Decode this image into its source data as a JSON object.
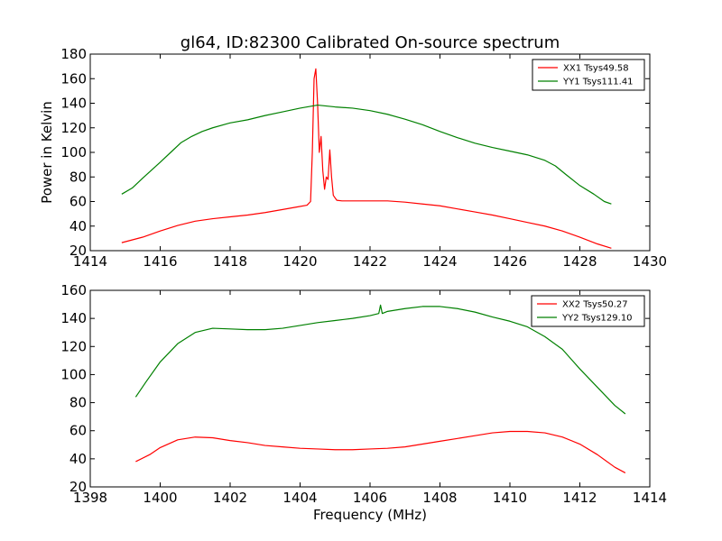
{
  "figure": {
    "title": "gl64, ID:82300 Calibrated On-source spectrum",
    "colors": {
      "xx": "#ff0000",
      "yy": "#008000"
    }
  },
  "chart_data": [
    {
      "type": "line",
      "ylabel": "Power in Kelvin",
      "xlabel": "",
      "xlim": [
        1414,
        1430
      ],
      "ylim": [
        20,
        180
      ],
      "xticks": [
        1414,
        1416,
        1418,
        1420,
        1422,
        1424,
        1426,
        1428,
        1430
      ],
      "yticks": [
        20,
        40,
        60,
        80,
        100,
        120,
        140,
        160,
        180
      ],
      "legend_position": "top-right",
      "series": [
        {
          "name": "XX1 Tsys49.58",
          "color": "#ff0000",
          "points": [
            [
              1414.9,
              26.5
            ],
            [
              1415.5,
              31
            ],
            [
              1416,
              36
            ],
            [
              1416.5,
              40.5
            ],
            [
              1417,
              44
            ],
            [
              1417.5,
              46
            ],
            [
              1418,
              47.5
            ],
            [
              1418.5,
              49
            ],
            [
              1419,
              51
            ],
            [
              1419.5,
              53.5
            ],
            [
              1419.9,
              55.5
            ],
            [
              1420.2,
              57
            ],
            [
              1420.3,
              60
            ],
            [
              1420.35,
              100
            ],
            [
              1420.4,
              160
            ],
            [
              1420.45,
              168
            ],
            [
              1420.5,
              140
            ],
            [
              1420.55,
              100
            ],
            [
              1420.6,
              113
            ],
            [
              1420.65,
              85
            ],
            [
              1420.7,
              70
            ],
            [
              1420.75,
              80
            ],
            [
              1420.8,
              78
            ],
            [
              1420.85,
              102
            ],
            [
              1420.9,
              80
            ],
            [
              1420.95,
              65
            ],
            [
              1421.05,
              61
            ],
            [
              1421.2,
              60.5
            ],
            [
              1421.5,
              60.5
            ],
            [
              1422,
              60.5
            ],
            [
              1422.5,
              60.5
            ],
            [
              1423,
              59.5
            ],
            [
              1423.5,
              58
            ],
            [
              1424,
              56.5
            ],
            [
              1424.5,
              54
            ],
            [
              1425,
              51.5
            ],
            [
              1425.5,
              49
            ],
            [
              1426,
              46
            ],
            [
              1426.5,
              43
            ],
            [
              1427,
              40
            ],
            [
              1427.5,
              36
            ],
            [
              1428,
              31
            ],
            [
              1428.5,
              25.5
            ],
            [
              1428.9,
              22
            ]
          ]
        },
        {
          "name": "YY1 Tsys111.41",
          "color": "#008000",
          "points": [
            [
              1414.9,
              66
            ],
            [
              1415.2,
              71
            ],
            [
              1415.5,
              79
            ],
            [
              1416,
              92
            ],
            [
              1416.3,
              100
            ],
            [
              1416.6,
              108
            ],
            [
              1416.9,
              113
            ],
            [
              1417.2,
              117
            ],
            [
              1417.5,
              120
            ],
            [
              1418,
              124
            ],
            [
              1418.5,
              126.5
            ],
            [
              1419,
              130
            ],
            [
              1419.5,
              133
            ],
            [
              1420,
              136
            ],
            [
              1420.5,
              138.5
            ],
            [
              1421,
              137
            ],
            [
              1421.5,
              136
            ],
            [
              1422,
              134
            ],
            [
              1422.5,
              131
            ],
            [
              1423,
              127
            ],
            [
              1423.5,
              122.5
            ],
            [
              1424,
              117
            ],
            [
              1424.5,
              112
            ],
            [
              1425,
              107.5
            ],
            [
              1425.5,
              104
            ],
            [
              1426,
              101
            ],
            [
              1426.5,
              98
            ],
            [
              1427,
              93.5
            ],
            [
              1427.3,
              89
            ],
            [
              1427.6,
              82
            ],
            [
              1428,
              73
            ],
            [
              1428.4,
              66
            ],
            [
              1428.7,
              60
            ],
            [
              1428.9,
              58
            ]
          ]
        }
      ]
    },
    {
      "type": "line",
      "ylabel": "",
      "xlabel": "Frequency (MHz)",
      "xlim": [
        1398,
        1414
      ],
      "ylim": [
        20,
        160
      ],
      "xticks": [
        1398,
        1400,
        1402,
        1404,
        1406,
        1408,
        1410,
        1412,
        1414
      ],
      "yticks": [
        20,
        40,
        60,
        80,
        100,
        120,
        140,
        160
      ],
      "legend_position": "top-right",
      "series": [
        {
          "name": "XX2 Tsys50.27",
          "color": "#ff0000",
          "points": [
            [
              1399.3,
              38
            ],
            [
              1399.7,
              43
            ],
            [
              1400,
              48
            ],
            [
              1400.5,
              53.5
            ],
            [
              1401,
              55.5
            ],
            [
              1401.5,
              55
            ],
            [
              1402,
              53
            ],
            [
              1402.5,
              51.5
            ],
            [
              1403,
              49.5
            ],
            [
              1403.5,
              48.5
            ],
            [
              1404,
              47.5
            ],
            [
              1404.5,
              47
            ],
            [
              1405,
              46.5
            ],
            [
              1405.5,
              46.5
            ],
            [
              1406,
              47
            ],
            [
              1406.5,
              47.5
            ],
            [
              1407,
              48.5
            ],
            [
              1407.5,
              50.5
            ],
            [
              1408,
              52.5
            ],
            [
              1408.5,
              54.5
            ],
            [
              1409,
              56.5
            ],
            [
              1409.5,
              58.5
            ],
            [
              1410,
              59.5
            ],
            [
              1410.5,
              59.5
            ],
            [
              1411,
              58.5
            ],
            [
              1411.5,
              55.5
            ],
            [
              1412,
              50.5
            ],
            [
              1412.5,
              43
            ],
            [
              1413,
              34
            ],
            [
              1413.3,
              30
            ]
          ]
        },
        {
          "name": "YY2 Tsys129.10",
          "color": "#008000",
          "points": [
            [
              1399.3,
              84
            ],
            [
              1399.6,
              95
            ],
            [
              1400,
              109
            ],
            [
              1400.5,
              122
            ],
            [
              1401,
              130
            ],
            [
              1401.5,
              133
            ],
            [
              1402,
              132.5
            ],
            [
              1402.5,
              132
            ],
            [
              1403,
              132
            ],
            [
              1403.5,
              133
            ],
            [
              1404,
              135
            ],
            [
              1404.5,
              137
            ],
            [
              1405,
              138.5
            ],
            [
              1405.5,
              140
            ],
            [
              1406,
              142
            ],
            [
              1406.25,
              143.5
            ],
            [
              1406.3,
              149.5
            ],
            [
              1406.35,
              143.5
            ],
            [
              1406.5,
              145
            ],
            [
              1407,
              147
            ],
            [
              1407.5,
              148.5
            ],
            [
              1408,
              148.5
            ],
            [
              1408.5,
              147
            ],
            [
              1409,
              144.5
            ],
            [
              1409.5,
              141
            ],
            [
              1410,
              138
            ],
            [
              1410.5,
              134
            ],
            [
              1411,
              127
            ],
            [
              1411.5,
              118
            ],
            [
              1412,
              104
            ],
            [
              1412.5,
              91
            ],
            [
              1413,
              78
            ],
            [
              1413.3,
              72
            ]
          ]
        }
      ]
    }
  ]
}
